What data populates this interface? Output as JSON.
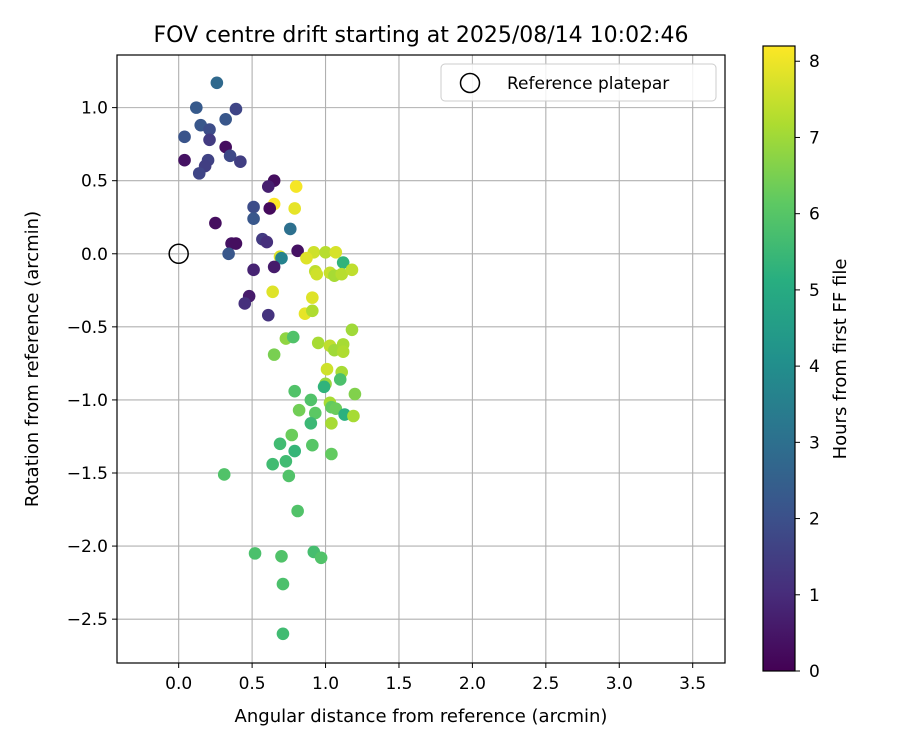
{
  "chart_data": {
    "type": "scatter",
    "title": "FOV centre drift starting at 2025/08/14 10:02:46",
    "xlabel": "Angular distance from reference (arcmin)",
    "ylabel": "Rotation from reference (arcmin)",
    "xlim": [
      -0.42,
      3.72
    ],
    "ylim": [
      -2.8,
      1.36
    ],
    "xticks": [
      0.0,
      0.5,
      1.0,
      1.5,
      2.0,
      2.5,
      3.0,
      3.5
    ],
    "xtick_labels": [
      "0.0",
      "0.5",
      "1.0",
      "1.5",
      "2.0",
      "2.5",
      "3.0",
      "3.5"
    ],
    "yticks": [
      1.0,
      0.5,
      0.0,
      -0.5,
      -1.0,
      -1.5,
      -2.0,
      -2.5
    ],
    "ytick_labels": [
      "1.0",
      "0.5",
      "0.0",
      "−0.5",
      "−1.0",
      "−1.5",
      "−2.0",
      "−2.5"
    ],
    "grid": true,
    "legend": {
      "position": "top-right",
      "label": "Reference platepar"
    },
    "reference_point": {
      "x": 0.0,
      "y": 0.0
    },
    "colorbar": {
      "label": "Hours from first FF file",
      "range": [
        0,
        8.2
      ],
      "colormap": "viridis",
      "ticks": [
        0,
        1,
        2,
        3,
        4,
        5,
        6,
        7,
        8
      ],
      "tick_labels": [
        "0",
        "1",
        "2",
        "3",
        "4",
        "5",
        "6",
        "7",
        "8"
      ]
    },
    "points": [
      {
        "x": 0.26,
        "y": 1.17,
        "c": 2.8
      },
      {
        "x": 0.12,
        "y": 1.0,
        "c": 2.3
      },
      {
        "x": 0.39,
        "y": 0.99,
        "c": 1.7
      },
      {
        "x": 0.32,
        "y": 0.92,
        "c": 2.2
      },
      {
        "x": 0.15,
        "y": 0.88,
        "c": 2.2
      },
      {
        "x": 0.21,
        "y": 0.85,
        "c": 1.9
      },
      {
        "x": 0.04,
        "y": 0.8,
        "c": 2.1
      },
      {
        "x": 0.21,
        "y": 0.78,
        "c": 1.4
      },
      {
        "x": 0.32,
        "y": 0.73,
        "c": 0.3
      },
      {
        "x": 0.35,
        "y": 0.67,
        "c": 1.8
      },
      {
        "x": 0.42,
        "y": 0.63,
        "c": 1.5
      },
      {
        "x": 0.04,
        "y": 0.64,
        "c": 0.4
      },
      {
        "x": 0.2,
        "y": 0.64,
        "c": 1.6
      },
      {
        "x": 0.18,
        "y": 0.6,
        "c": 1.5
      },
      {
        "x": 0.14,
        "y": 0.55,
        "c": 1.7
      },
      {
        "x": 0.65,
        "y": 0.5,
        "c": 0.3
      },
      {
        "x": 0.61,
        "y": 0.46,
        "c": 0.7
      },
      {
        "x": 0.8,
        "y": 0.46,
        "c": 8.1
      },
      {
        "x": 0.65,
        "y": 0.34,
        "c": 8.2
      },
      {
        "x": 0.51,
        "y": 0.32,
        "c": 1.9
      },
      {
        "x": 0.62,
        "y": 0.31,
        "c": 0.2
      },
      {
        "x": 0.79,
        "y": 0.31,
        "c": 7.9
      },
      {
        "x": 0.51,
        "y": 0.24,
        "c": 2.2
      },
      {
        "x": 0.25,
        "y": 0.21,
        "c": 0.3
      },
      {
        "x": 0.76,
        "y": 0.17,
        "c": 3.0
      },
      {
        "x": 0.57,
        "y": 0.1,
        "c": 1.4
      },
      {
        "x": 0.6,
        "y": 0.08,
        "c": 1.1
      },
      {
        "x": 0.36,
        "y": 0.07,
        "c": 0.4
      },
      {
        "x": 0.39,
        "y": 0.07,
        "c": 0.3
      },
      {
        "x": 0.81,
        "y": 0.02,
        "c": 0.4
      },
      {
        "x": 0.34,
        "y": 0.0,
        "c": 2.2
      },
      {
        "x": 0.69,
        "y": -0.02,
        "c": 7.8
      },
      {
        "x": 0.7,
        "y": -0.03,
        "c": 3.6
      },
      {
        "x": 0.92,
        "y": 0.01,
        "c": 7.6
      },
      {
        "x": 1.0,
        "y": 0.01,
        "c": 7.3
      },
      {
        "x": 1.07,
        "y": 0.01,
        "c": 7.7
      },
      {
        "x": 0.87,
        "y": -0.03,
        "c": 7.8
      },
      {
        "x": 1.12,
        "y": -0.06,
        "c": 5.3
      },
      {
        "x": 0.51,
        "y": -0.11,
        "c": 0.8
      },
      {
        "x": 0.65,
        "y": -0.09,
        "c": 0.6
      },
      {
        "x": 0.93,
        "y": -0.12,
        "c": 7.4
      },
      {
        "x": 0.94,
        "y": -0.14,
        "c": 7.6
      },
      {
        "x": 1.03,
        "y": -0.13,
        "c": 7.5
      },
      {
        "x": 1.06,
        "y": -0.15,
        "c": 7.1
      },
      {
        "x": 1.11,
        "y": -0.14,
        "c": 7.3
      },
      {
        "x": 1.18,
        "y": -0.11,
        "c": 7.4
      },
      {
        "x": 0.64,
        "y": -0.26,
        "c": 7.8
      },
      {
        "x": 0.48,
        "y": -0.29,
        "c": 0.6
      },
      {
        "x": 0.45,
        "y": -0.34,
        "c": 1.1
      },
      {
        "x": 0.91,
        "y": -0.3,
        "c": 7.8
      },
      {
        "x": 0.61,
        "y": -0.42,
        "c": 1.2
      },
      {
        "x": 0.86,
        "y": -0.41,
        "c": 7.9
      },
      {
        "x": 0.91,
        "y": -0.39,
        "c": 7.2
      },
      {
        "x": 1.18,
        "y": -0.52,
        "c": 7.0
      },
      {
        "x": 0.73,
        "y": -0.58,
        "c": 6.8
      },
      {
        "x": 0.78,
        "y": -0.57,
        "c": 5.9
      },
      {
        "x": 0.95,
        "y": -0.61,
        "c": 7.1
      },
      {
        "x": 1.03,
        "y": -0.63,
        "c": 7.4
      },
      {
        "x": 1.06,
        "y": -0.66,
        "c": 7.0
      },
      {
        "x": 1.12,
        "y": -0.62,
        "c": 7.1
      },
      {
        "x": 1.12,
        "y": -0.67,
        "c": 7.2
      },
      {
        "x": 0.65,
        "y": -0.69,
        "c": 6.5
      },
      {
        "x": 1.01,
        "y": -0.79,
        "c": 7.6
      },
      {
        "x": 1.11,
        "y": -0.81,
        "c": 7.1
      },
      {
        "x": 1.1,
        "y": -0.86,
        "c": 5.8
      },
      {
        "x": 1.0,
        "y": -0.89,
        "c": 6.9
      },
      {
        "x": 0.99,
        "y": -0.91,
        "c": 5.3
      },
      {
        "x": 0.79,
        "y": -0.94,
        "c": 5.9
      },
      {
        "x": 1.2,
        "y": -0.96,
        "c": 6.6
      },
      {
        "x": 0.9,
        "y": -1.0,
        "c": 5.9
      },
      {
        "x": 1.03,
        "y": -1.02,
        "c": 7.1
      },
      {
        "x": 1.04,
        "y": -1.05,
        "c": 6.2
      },
      {
        "x": 1.07,
        "y": -1.06,
        "c": 6.3
      },
      {
        "x": 0.82,
        "y": -1.07,
        "c": 6.4
      },
      {
        "x": 0.93,
        "y": -1.09,
        "c": 6.1
      },
      {
        "x": 1.13,
        "y": -1.1,
        "c": 5.2
      },
      {
        "x": 1.19,
        "y": -1.11,
        "c": 7.1
      },
      {
        "x": 0.9,
        "y": -1.16,
        "c": 5.5
      },
      {
        "x": 1.04,
        "y": -1.16,
        "c": 7.1
      },
      {
        "x": 0.77,
        "y": -1.24,
        "c": 6.3
      },
      {
        "x": 0.69,
        "y": -1.3,
        "c": 5.6
      },
      {
        "x": 0.91,
        "y": -1.31,
        "c": 6.0
      },
      {
        "x": 0.79,
        "y": -1.35,
        "c": 5.4
      },
      {
        "x": 1.04,
        "y": -1.37,
        "c": 6.2
      },
      {
        "x": 0.73,
        "y": -1.42,
        "c": 5.6
      },
      {
        "x": 0.64,
        "y": -1.44,
        "c": 5.6
      },
      {
        "x": 0.31,
        "y": -1.51,
        "c": 5.9
      },
      {
        "x": 0.75,
        "y": -1.52,
        "c": 5.9
      },
      {
        "x": 0.81,
        "y": -1.76,
        "c": 5.9
      },
      {
        "x": 0.52,
        "y": -2.05,
        "c": 5.8
      },
      {
        "x": 0.92,
        "y": -2.04,
        "c": 5.7
      },
      {
        "x": 0.97,
        "y": -2.08,
        "c": 5.9
      },
      {
        "x": 0.7,
        "y": -2.07,
        "c": 5.9
      },
      {
        "x": 0.71,
        "y": -2.26,
        "c": 5.8
      },
      {
        "x": 0.71,
        "y": -2.6,
        "c": 5.6
      }
    ]
  }
}
